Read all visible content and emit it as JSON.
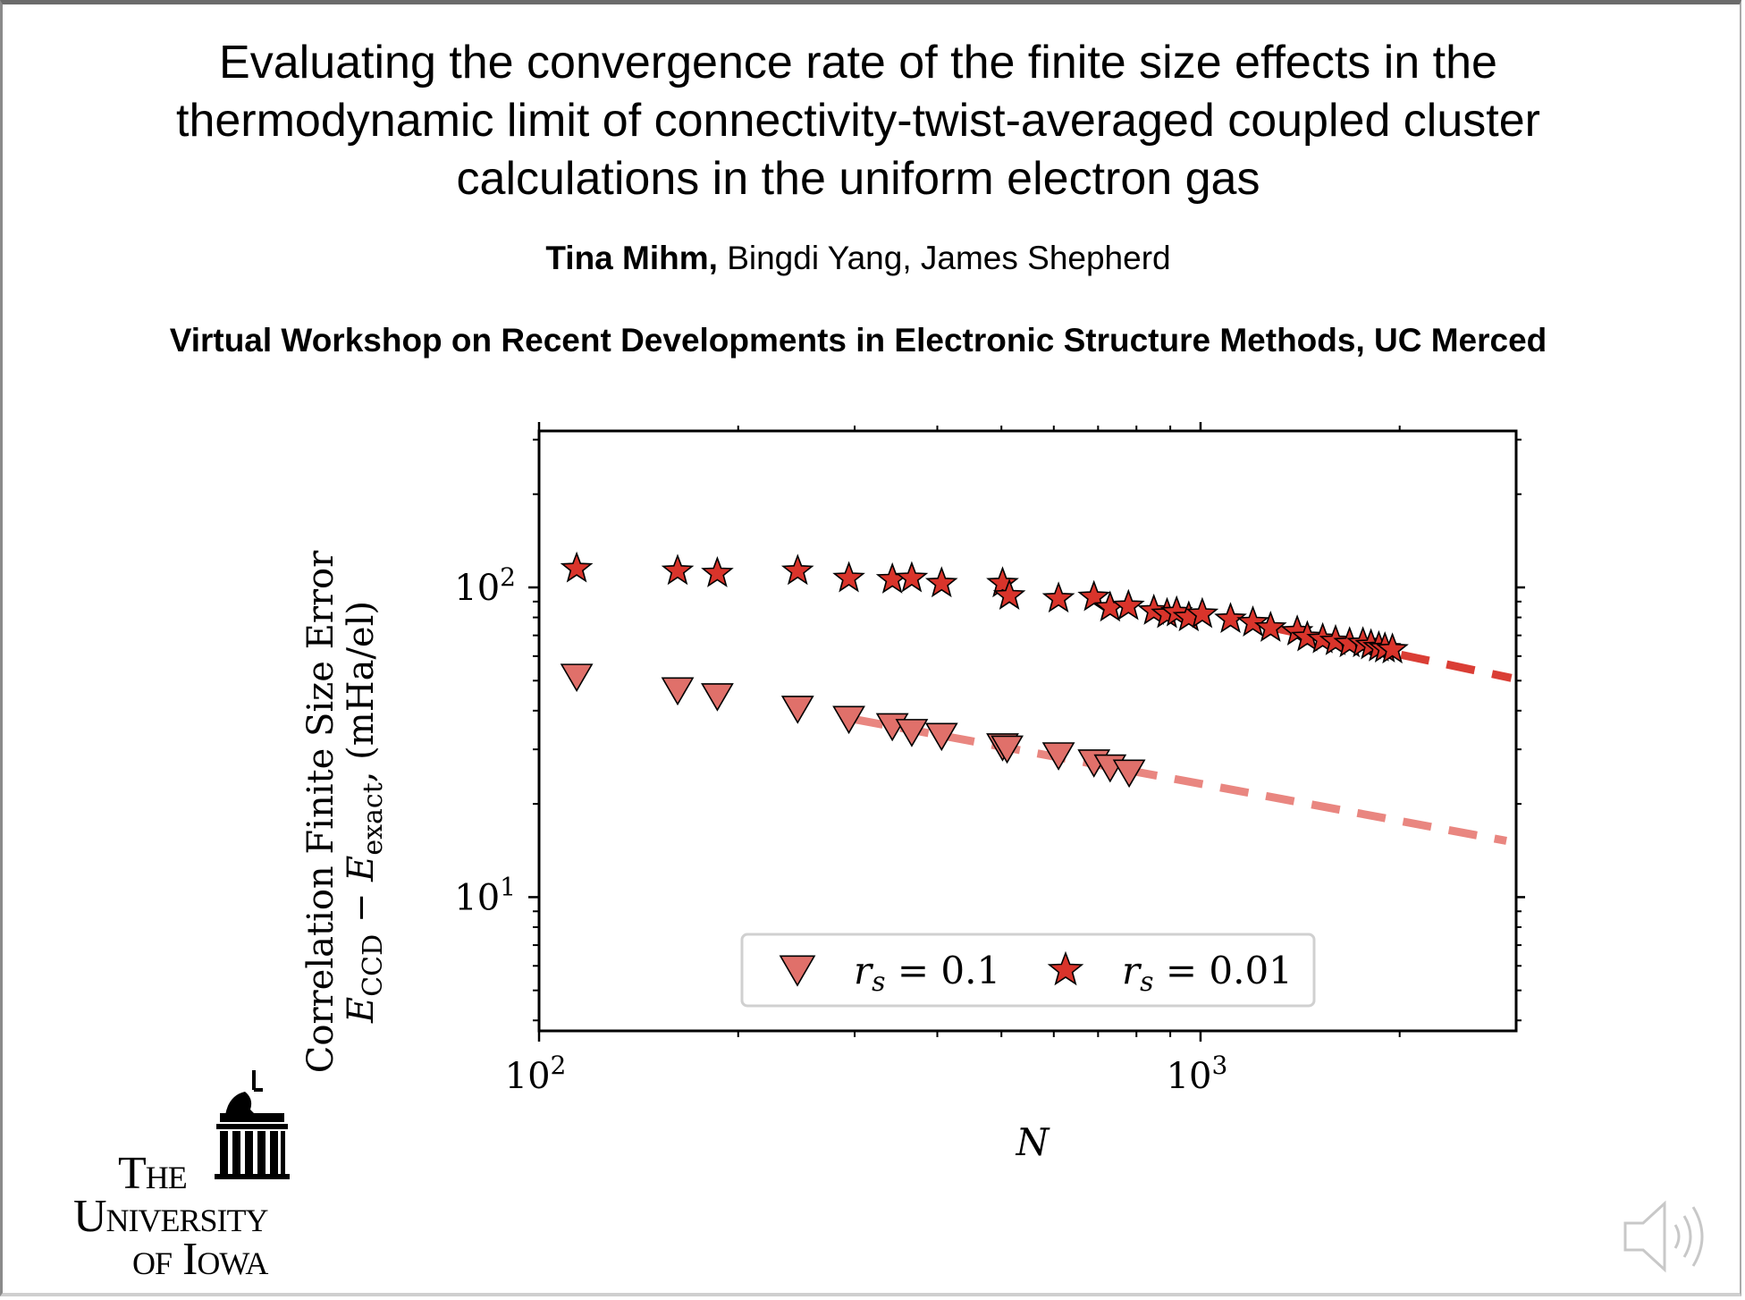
{
  "slide": {
    "title_lines": [
      "Evaluating the convergence rate of the finite size effects in the",
      "thermodynamic limit of connectivity-twist-averaged coupled cluster",
      "calculations in the uniform electron gas"
    ],
    "authors_bold": "Tina Mihm,",
    "authors_rest": " Bingdi Yang, James Shepherd",
    "venue": "Virtual Workshop on Recent Developments in Electronic Structure Methods, UC Merced"
  },
  "logo": {
    "line1": "The",
    "line2": "University",
    "line3": "of Iowa"
  },
  "colors": {
    "star_fill": "#d9342b",
    "triangle_fill": "#e0706a",
    "star_fit": "#d9342b",
    "triangle_fit": "#e8807a"
  },
  "chart_data": {
    "type": "scatter",
    "x_scale": "log",
    "y_scale": "log",
    "xlim": [
      100,
      3000
    ],
    "ylim": [
      3.7,
      320
    ],
    "xlabel": "N",
    "ylabel_line1": "Correlation Finite Size Error",
    "ylabel_line2": "E_CCD − E_exact, (mHa/el)",
    "x_ticks": [
      {
        "value": 100,
        "base": "10",
        "exp": "2"
      },
      {
        "value": 1000,
        "base": "10",
        "exp": "3"
      }
    ],
    "y_ticks": [
      {
        "value": 10,
        "base": "10",
        "exp": "1"
      },
      {
        "value": 100,
        "base": "10",
        "exp": "2"
      }
    ],
    "grid": false,
    "legend_position": "bottom-center",
    "series": [
      {
        "name": "r_s = 0.1",
        "legend_var": "r",
        "legend_sub": "s",
        "legend_value": "= 0.1",
        "marker": "triangle-down",
        "x": [
          114,
          162,
          186,
          246,
          294,
          342,
          366,
          406,
          502,
          510,
          610,
          690,
          730,
          780
        ],
        "y": [
          52,
          47,
          45,
          41,
          38,
          36,
          34.5,
          33.5,
          31,
          30.5,
          29,
          27.5,
          26.5,
          25.5
        ],
        "fit": {
          "x": [
            300,
            2900
          ],
          "y": [
            37.5,
            15.2
          ]
        }
      },
      {
        "name": "r_s = 0.01",
        "legend_var": "r",
        "legend_sub": "s",
        "legend_value": "= 0.01",
        "marker": "star",
        "x": [
          114,
          162,
          186,
          246,
          294,
          342,
          366,
          406,
          502,
          514,
          610,
          690,
          730,
          778,
          850,
          890,
          920,
          960,
          1006,
          1110,
          1200,
          1276,
          1400,
          1450,
          1530,
          1600,
          1680,
          1760,
          1810,
          1860,
          1900,
          1950
        ],
        "y": [
          115,
          113,
          111,
          113,
          107,
          106,
          107,
          103,
          103,
          94,
          92,
          93,
          86,
          87,
          84,
          82,
          83,
          80,
          82,
          79,
          77,
          74,
          72,
          69,
          68,
          67,
          66,
          66,
          65,
          64,
          63.5,
          63
        ],
        "fit": {
          "x": [
            1250,
            2950
          ],
          "y": [
            75,
            51
          ]
        }
      }
    ]
  }
}
